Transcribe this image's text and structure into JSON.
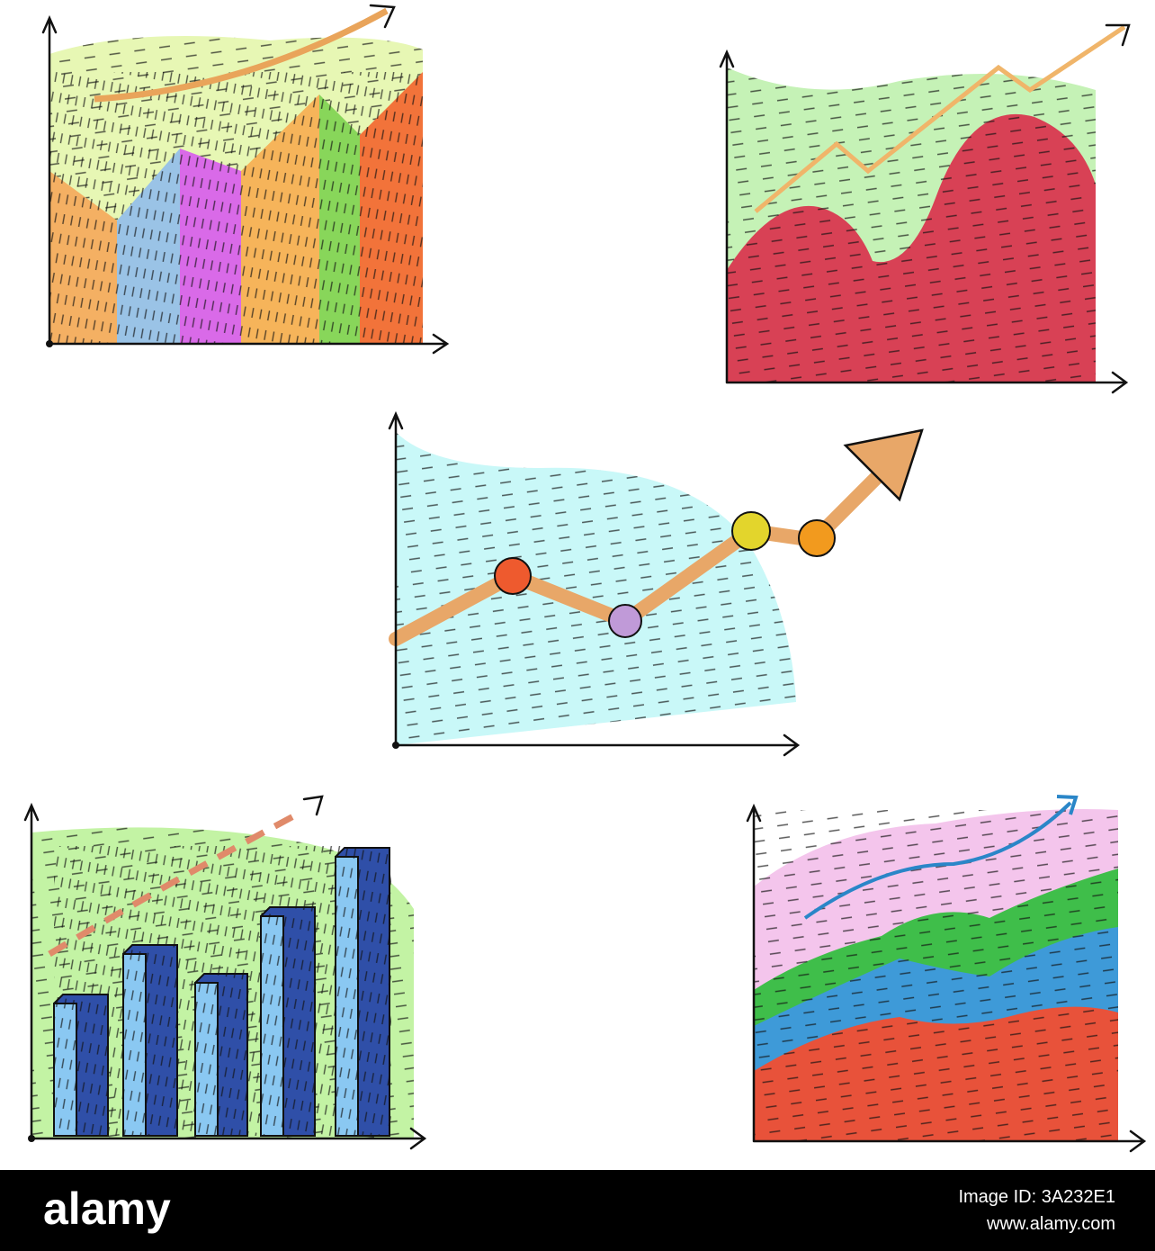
{
  "footer": {
    "brand": "alamy",
    "image_id": "Image ID: 3A232E1",
    "url": "www.alamy.com"
  }
}
